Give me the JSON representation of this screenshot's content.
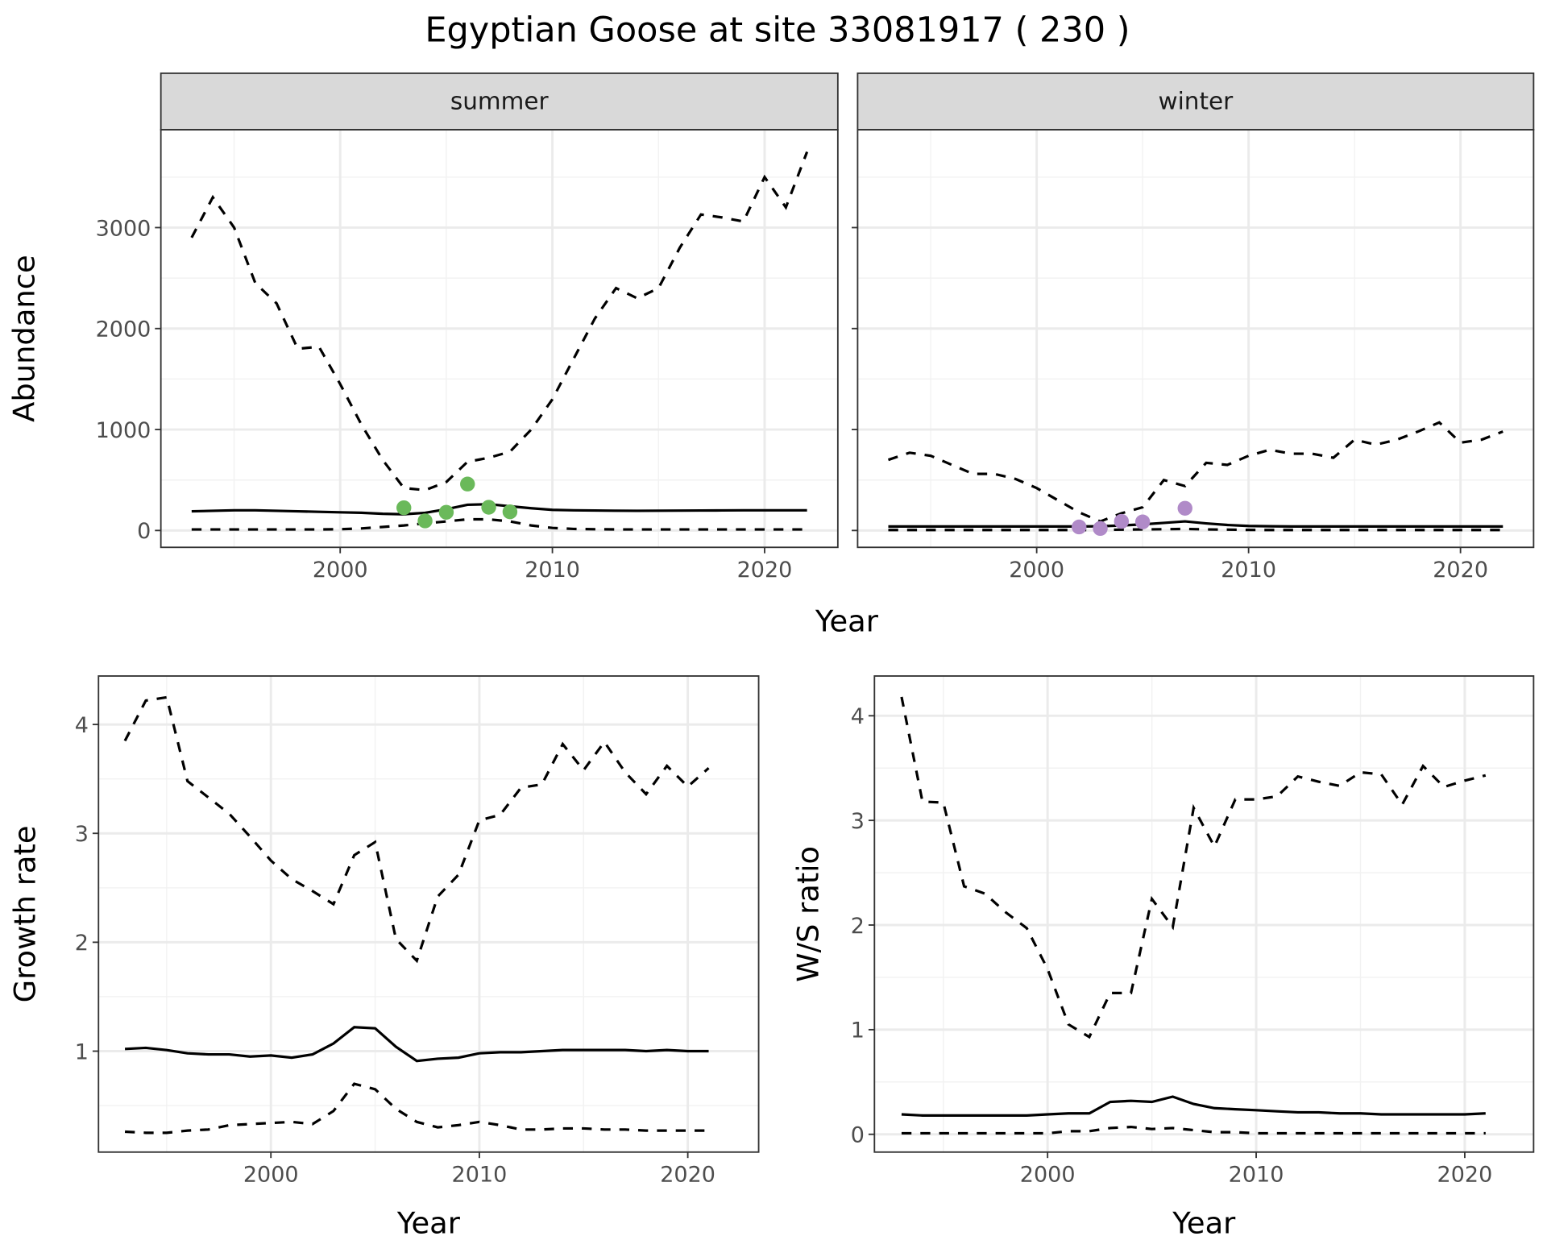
{
  "title": "Egyptian Goose at site 33081917 ( 230 )",
  "chart_data": [
    {
      "type": "line",
      "panel": "summer",
      "facet_label": "summer",
      "xlabel": "Year",
      "ylabel": "Abundance",
      "xlim": [
        1991.55,
        2023.45
      ],
      "ylim": [
        -167,
        3970
      ],
      "xticks": [
        2000,
        2010,
        2020
      ],
      "yticks": [
        0,
        1000,
        2000,
        3000
      ],
      "grid": true,
      "point_color": "#6ab95a",
      "x": [
        1993,
        1994,
        1995,
        1996,
        1997,
        1998,
        1999,
        2000,
        2001,
        2002,
        2003,
        2004,
        2005,
        2006,
        2007,
        2008,
        2009,
        2010,
        2011,
        2012,
        2013,
        2014,
        2015,
        2016,
        2017,
        2018,
        2019,
        2020,
        2021,
        2022
      ],
      "upper": [
        2900,
        3300,
        3000,
        2450,
        2250,
        1800,
        1820,
        1450,
        1050,
        700,
        420,
        400,
        480,
        680,
        720,
        780,
        1000,
        1300,
        1700,
        2100,
        2400,
        2300,
        2400,
        2800,
        3130,
        3100,
        3060,
        3500,
        3200,
        3750
      ],
      "mean": [
        190,
        195,
        200,
        200,
        195,
        190,
        185,
        180,
        175,
        165,
        160,
        175,
        210,
        255,
        260,
        240,
        220,
        205,
        200,
        198,
        196,
        195,
        196,
        197,
        198,
        199,
        200,
        200,
        200,
        200
      ],
      "lower": [
        10,
        10,
        10,
        10,
        10,
        10,
        10,
        12,
        20,
        35,
        50,
        70,
        90,
        110,
        110,
        90,
        50,
        25,
        15,
        12,
        10,
        10,
        10,
        10,
        10,
        10,
        10,
        10,
        10,
        10
      ],
      "points": [
        {
          "x": 2003,
          "y": 225
        },
        {
          "x": 2004,
          "y": 95
        },
        {
          "x": 2005,
          "y": 180
        },
        {
          "x": 2006,
          "y": 460
        },
        {
          "x": 2007,
          "y": 230
        },
        {
          "x": 2008,
          "y": 185
        }
      ]
    },
    {
      "type": "line",
      "panel": "winter",
      "facet_label": "winter",
      "xlabel": "Year",
      "ylabel": "Abundance",
      "xlim": [
        1991.55,
        2023.45
      ],
      "ylim": [
        -167,
        3970
      ],
      "xticks": [
        2000,
        2010,
        2020
      ],
      "yticks": [
        0,
        1000,
        2000,
        3000
      ],
      "grid": true,
      "point_color": "#b08ac8",
      "x": [
        1993,
        1994,
        1995,
        1996,
        1997,
        1998,
        1999,
        2000,
        2001,
        2002,
        2003,
        2004,
        2005,
        2006,
        2007,
        2008,
        2009,
        2010,
        2011,
        2012,
        2013,
        2014,
        2015,
        2016,
        2017,
        2018,
        2019,
        2020,
        2021,
        2022
      ],
      "upper": [
        700,
        770,
        740,
        650,
        560,
        560,
        510,
        420,
        300,
        180,
        90,
        170,
        230,
        500,
        440,
        670,
        650,
        740,
        800,
        760,
        760,
        720,
        900,
        850,
        900,
        980,
        1070,
        870,
        900,
        980
      ],
      "mean": [
        40,
        40,
        40,
        40,
        40,
        40,
        40,
        40,
        40,
        40,
        42,
        50,
        60,
        75,
        90,
        70,
        55,
        45,
        42,
        40,
        40,
        40,
        40,
        40,
        40,
        40,
        40,
        40,
        40,
        40
      ],
      "lower": [
        5,
        5,
        5,
        5,
        5,
        5,
        5,
        5,
        5,
        5,
        6,
        8,
        10,
        12,
        15,
        10,
        8,
        6,
        5,
        5,
        5,
        5,
        5,
        5,
        5,
        5,
        5,
        5,
        5,
        5
      ],
      "points": [
        {
          "x": 2002,
          "y": 35
        },
        {
          "x": 2003,
          "y": 20
        },
        {
          "x": 2004,
          "y": 90
        },
        {
          "x": 2005,
          "y": 85
        },
        {
          "x": 2007,
          "y": 220
        }
      ]
    },
    {
      "type": "line",
      "panel": "growth",
      "xlabel": "Year",
      "ylabel": "Growth rate",
      "xlim": [
        1991.73,
        2023.4
      ],
      "ylim": [
        0.073,
        4.445
      ],
      "xticks": [
        2000,
        2010,
        2020
      ],
      "yticks": [
        1,
        2,
        3,
        4
      ],
      "grid": true,
      "x": [
        1993,
        1994,
        1995,
        1996,
        1997,
        1998,
        1999,
        2000,
        2001,
        2002,
        2003,
        2004,
        2005,
        2006,
        2007,
        2008,
        2009,
        2010,
        2011,
        2012,
        2013,
        2014,
        2015,
        2016,
        2017,
        2018,
        2019,
        2020,
        2021
      ],
      "upper": [
        3.85,
        4.22,
        4.25,
        3.48,
        3.33,
        3.18,
        2.97,
        2.75,
        2.58,
        2.47,
        2.35,
        2.8,
        2.92,
        2.03,
        1.83,
        2.42,
        2.62,
        3.12,
        3.17,
        3.42,
        3.45,
        3.82,
        3.58,
        3.84,
        3.56,
        3.36,
        3.62,
        3.43,
        3.6
      ],
      "mean": [
        1.02,
        1.03,
        1.01,
        0.98,
        0.97,
        0.97,
        0.95,
        0.96,
        0.94,
        0.97,
        1.07,
        1.22,
        1.21,
        1.04,
        0.91,
        0.93,
        0.94,
        0.98,
        0.99,
        0.99,
        1.0,
        1.01,
        1.01,
        1.01,
        1.01,
        1.0,
        1.01,
        1.0,
        1.0
      ],
      "lower": [
        0.26,
        0.25,
        0.25,
        0.27,
        0.28,
        0.32,
        0.33,
        0.34,
        0.35,
        0.33,
        0.45,
        0.7,
        0.65,
        0.47,
        0.35,
        0.3,
        0.32,
        0.35,
        0.32,
        0.28,
        0.28,
        0.29,
        0.29,
        0.28,
        0.28,
        0.27,
        0.27,
        0.27,
        0.27
      ]
    },
    {
      "type": "line",
      "panel": "ws",
      "xlabel": "Year",
      "ylabel": "W/S ratio",
      "xlim": [
        1991.7,
        2023.3
      ],
      "ylim": [
        -0.17,
        4.38
      ],
      "xticks": [
        2000,
        2010,
        2020
      ],
      "yticks": [
        0,
        1,
        2,
        3,
        4
      ],
      "grid": true,
      "x": [
        1993,
        1994,
        1995,
        1996,
        1997,
        1998,
        1999,
        2000,
        2001,
        2002,
        2003,
        2004,
        2005,
        2006,
        2007,
        2008,
        2009,
        2010,
        2011,
        2012,
        2013,
        2014,
        2015,
        2016,
        2017,
        2018,
        2019,
        2020,
        2021
      ],
      "upper": [
        4.18,
        3.18,
        3.17,
        2.37,
        2.3,
        2.12,
        1.97,
        1.58,
        1.05,
        0.93,
        1.35,
        1.35,
        2.25,
        1.98,
        3.12,
        2.75,
        3.2,
        3.2,
        3.23,
        3.42,
        3.37,
        3.33,
        3.46,
        3.44,
        3.15,
        3.52,
        3.32,
        3.38,
        3.43
      ],
      "mean": [
        0.19,
        0.18,
        0.18,
        0.18,
        0.18,
        0.18,
        0.18,
        0.19,
        0.2,
        0.2,
        0.31,
        0.32,
        0.31,
        0.36,
        0.29,
        0.25,
        0.24,
        0.23,
        0.22,
        0.21,
        0.21,
        0.2,
        0.2,
        0.19,
        0.19,
        0.19,
        0.19,
        0.19,
        0.2
      ],
      "lower": [
        0.01,
        0.01,
        0.01,
        0.01,
        0.01,
        0.01,
        0.01,
        0.01,
        0.03,
        0.03,
        0.06,
        0.07,
        0.05,
        0.06,
        0.04,
        0.02,
        0.02,
        0.01,
        0.01,
        0.01,
        0.01,
        0.01,
        0.01,
        0.01,
        0.01,
        0.01,
        0.01,
        0.01,
        0.01
      ]
    }
  ],
  "shared_xlabel_top": "Year"
}
